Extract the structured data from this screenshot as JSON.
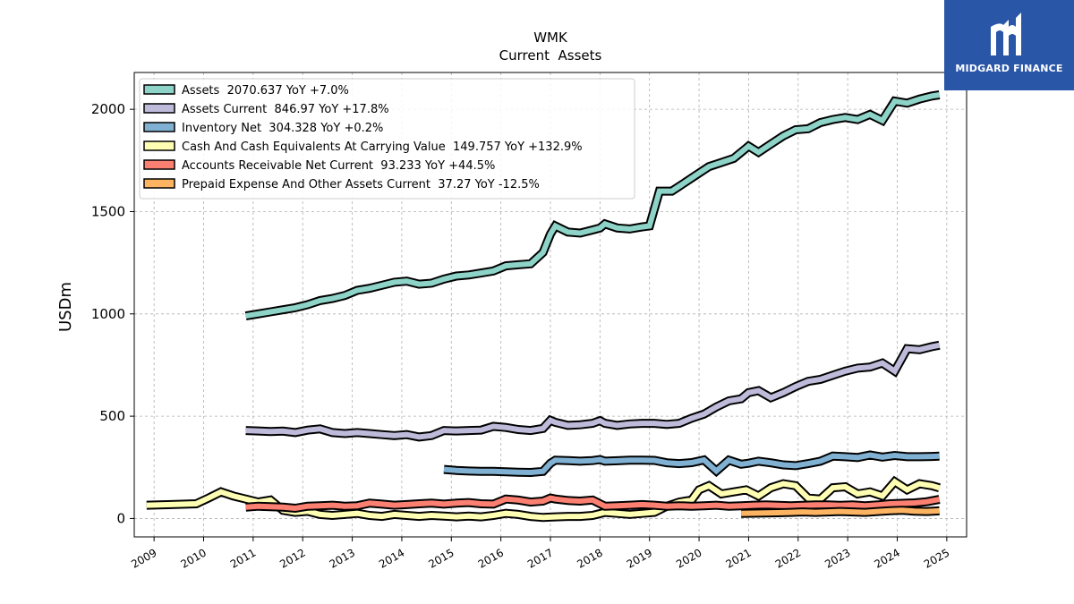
{
  "logo": {
    "text": "MIDGARD FINANCE",
    "background": "#2a56a8"
  },
  "chart_data": {
    "type": "line",
    "title": "WMK",
    "subtitle": "Current  Assets",
    "xlabel": "",
    "ylabel": "USDm",
    "xlim": [
      2008.6,
      2025.4
    ],
    "ylim": [
      -90,
      2180
    ],
    "x_ticks": [
      "2009",
      "2010",
      "2011",
      "2012",
      "2013",
      "2014",
      "2015",
      "2016",
      "2017",
      "2018",
      "2019",
      "2020",
      "2021",
      "2022",
      "2023",
      "2024",
      "2025"
    ],
    "y_ticks": [
      0,
      500,
      1000,
      1500,
      2000
    ],
    "grid": true,
    "legend_position": "top-left",
    "series": [
      {
        "name": "Assets  2070.637 YoY +7.0%",
        "color": "#8dd3c7",
        "x": [
          2010.85,
          2011.1,
          2011.35,
          2011.6,
          2011.85,
          2012.1,
          2012.35,
          2012.6,
          2012.85,
          2013.1,
          2013.35,
          2013.6,
          2013.85,
          2014.1,
          2014.35,
          2014.6,
          2014.85,
          2015.1,
          2015.35,
          2015.6,
          2015.85,
          2016.1,
          2016.35,
          2016.6,
          2016.85,
          2017.0,
          2017.1,
          2017.35,
          2017.6,
          2017.85,
          2018.0,
          2018.1,
          2018.35,
          2018.6,
          2018.85,
          2019.0,
          2019.2,
          2019.45,
          2019.7,
          2019.95,
          2020.2,
          2020.45,
          2020.7,
          2020.95,
          2021.0,
          2021.2,
          2021.45,
          2021.7,
          2021.95,
          2022.2,
          2022.45,
          2022.7,
          2022.95,
          2023.2,
          2023.45,
          2023.7,
          2023.95,
          2024.2,
          2024.45,
          2024.7,
          2024.85
        ],
        "y": [
          990,
          1000,
          1010,
          1020,
          1030,
          1045,
          1065,
          1075,
          1090,
          1115,
          1125,
          1140,
          1155,
          1160,
          1145,
          1150,
          1170,
          1185,
          1190,
          1200,
          1210,
          1235,
          1240,
          1245,
          1300,
          1390,
          1430,
          1400,
          1395,
          1410,
          1420,
          1440,
          1420,
          1415,
          1425,
          1430,
          1600,
          1600,
          1640,
          1680,
          1720,
          1740,
          1760,
          1810,
          1820,
          1790,
          1830,
          1870,
          1900,
          1905,
          1935,
          1950,
          1960,
          1950,
          1975,
          1945,
          2040,
          2030,
          2050,
          2065,
          2070.637
        ]
      },
      {
        "name": "Assets Current  846.97 YoY +17.8%",
        "color": "#bebada",
        "x": [
          2010.85,
          2011.1,
          2011.35,
          2011.6,
          2011.85,
          2012.1,
          2012.35,
          2012.6,
          2012.85,
          2013.1,
          2013.35,
          2013.6,
          2013.85,
          2014.1,
          2014.35,
          2014.6,
          2014.85,
          2015.1,
          2015.35,
          2015.6,
          2015.85,
          2016.1,
          2016.35,
          2016.6,
          2016.85,
          2017.0,
          2017.1,
          2017.35,
          2017.6,
          2017.85,
          2018.0,
          2018.1,
          2018.35,
          2018.6,
          2018.85,
          2019.1,
          2019.35,
          2019.6,
          2019.85,
          2020.1,
          2020.35,
          2020.6,
          2020.85,
          2021.0,
          2021.2,
          2021.45,
          2021.7,
          2021.95,
          2022.2,
          2022.45,
          2022.7,
          2022.95,
          2023.2,
          2023.45,
          2023.7,
          2023.95,
          2024.2,
          2024.45,
          2024.7,
          2024.85
        ],
        "y": [
          430,
          428,
          425,
          427,
          420,
          432,
          438,
          420,
          415,
          420,
          415,
          410,
          405,
          410,
          398,
          405,
          430,
          428,
          430,
          432,
          450,
          445,
          435,
          430,
          440,
          480,
          470,
          455,
          458,
          465,
          478,
          465,
          455,
          462,
          465,
          465,
          460,
          465,
          490,
          510,
          545,
          575,
          585,
          615,
          625,
          590,
          615,
          645,
          670,
          680,
          700,
          720,
          735,
          740,
          760,
          720,
          830,
          825,
          840,
          846.97
        ]
      },
      {
        "name": "Inventory Net  304.328 YoY +0.2%",
        "color": "#80b1d3",
        "x": [
          2014.85,
          2015.1,
          2015.35,
          2015.6,
          2015.85,
          2016.1,
          2016.35,
          2016.6,
          2016.85,
          2017.0,
          2017.1,
          2017.35,
          2017.6,
          2017.85,
          2018.0,
          2018.1,
          2018.35,
          2018.6,
          2018.85,
          2019.1,
          2019.35,
          2019.6,
          2019.85,
          2020.1,
          2020.35,
          2020.6,
          2020.85,
          2021.0,
          2021.2,
          2021.45,
          2021.7,
          2021.95,
          2022.2,
          2022.45,
          2022.7,
          2022.95,
          2023.2,
          2023.45,
          2023.7,
          2023.95,
          2024.2,
          2024.45,
          2024.7,
          2024.85
        ],
        "y": [
          240,
          235,
          232,
          230,
          230,
          228,
          226,
          225,
          230,
          270,
          285,
          283,
          280,
          283,
          288,
          280,
          282,
          285,
          285,
          284,
          272,
          268,
          273,
          286,
          232,
          285,
          265,
          270,
          280,
          272,
          262,
          258,
          268,
          280,
          305,
          302,
          298,
          310,
          300,
          308,
          302,
          302,
          303,
          304.328
        ]
      },
      {
        "name": "Cash And Cash Equivalents At Carrying Value  149.757 YoY +132.9%",
        "color": "#ffffb3",
        "x": [
          2008.85,
          2009.35,
          2009.85,
          2010.1,
          2010.35,
          2010.6,
          2010.85,
          2011.1,
          2011.35,
          2011.6,
          2011.85,
          2012.1,
          2012.35,
          2012.6,
          2012.85,
          2013.1,
          2013.35,
          2013.6,
          2013.85,
          2014.1,
          2014.35,
          2014.6,
          2014.85,
          2015.1,
          2015.35,
          2015.6,
          2015.85,
          2016.1,
          2016.35,
          2016.6,
          2016.85,
          2017.1,
          2017.35,
          2017.6,
          2017.85,
          2018.1,
          2018.35,
          2018.6,
          2018.85,
          2019.1,
          2019.35,
          2019.6,
          2019.85,
          2020.0,
          2020.2,
          2020.45,
          2020.7,
          2020.95,
          2021.2,
          2021.45,
          2021.7,
          2021.95,
          2022.2,
          2022.45,
          2022.7,
          2022.95,
          2023.2,
          2023.45,
          2023.7,
          2023.95,
          2024.2,
          2024.45,
          2024.7,
          2024.85
        ],
        "y": [
          65,
          68,
          72,
          100,
          130,
          110,
          95,
          80,
          90,
          40,
          30,
          35,
          20,
          15,
          20,
          25,
          15,
          10,
          20,
          15,
          10,
          15,
          12,
          8,
          12,
          8,
          15,
          25,
          20,
          10,
          5,
          8,
          10,
          10,
          15,
          30,
          25,
          20,
          25,
          30,
          60,
          80,
          90,
          140,
          160,
          120,
          130,
          140,
          110,
          150,
          170,
          160,
          100,
          95,
          150,
          155,
          120,
          130,
          110,
          180,
          140,
          170,
          160,
          149.757
        ]
      },
      {
        "name": "Accounts Receivable Net Current  93.233 YoY +44.5%",
        "color": "#fb8072",
        "x": [
          2010.85,
          2011.1,
          2011.35,
          2011.6,
          2011.85,
          2012.1,
          2012.35,
          2012.6,
          2012.85,
          2013.1,
          2013.35,
          2013.6,
          2013.85,
          2014.1,
          2014.35,
          2014.6,
          2014.85,
          2015.1,
          2015.35,
          2015.6,
          2015.85,
          2016.1,
          2016.35,
          2016.6,
          2016.85,
          2017.0,
          2017.1,
          2017.35,
          2017.6,
          2017.85,
          2018.1,
          2018.35,
          2018.6,
          2018.85,
          2019.1,
          2019.35,
          2019.6,
          2019.85,
          2020.1,
          2020.35,
          2020.6,
          2020.85,
          2021.1,
          2021.35,
          2021.6,
          2021.85,
          2022.1,
          2022.35,
          2022.6,
          2022.85,
          2023.1,
          2023.35,
          2023.6,
          2023.85,
          2024.1,
          2024.35,
          2024.6,
          2024.85
        ],
        "y": [
          55,
          60,
          58,
          55,
          50,
          60,
          62,
          65,
          60,
          62,
          75,
          70,
          65,
          68,
          72,
          75,
          70,
          75,
          78,
          72,
          70,
          95,
          90,
          80,
          85,
          100,
          95,
          88,
          85,
          90,
          60,
          62,
          65,
          68,
          65,
          60,
          62,
          60,
          62,
          65,
          60,
          62,
          65,
          66,
          64,
          62,
          64,
          66,
          66,
          64,
          66,
          62,
          66,
          72,
          74,
          76,
          82,
          93.233
        ]
      },
      {
        "name": "Prepaid Expense And Other Assets Current  37.27 YoY -12.5%",
        "color": "#fdb462",
        "x": [
          2020.85,
          2021.1,
          2021.35,
          2021.6,
          2021.85,
          2022.1,
          2022.35,
          2022.6,
          2022.85,
          2023.1,
          2023.35,
          2023.6,
          2023.85,
          2024.1,
          2024.35,
          2024.6,
          2024.85
        ],
        "y": [
          25,
          26,
          27,
          28,
          30,
          32,
          30,
          32,
          34,
          32,
          30,
          34,
          38,
          40,
          36,
          34,
          37.27
        ]
      }
    ]
  }
}
